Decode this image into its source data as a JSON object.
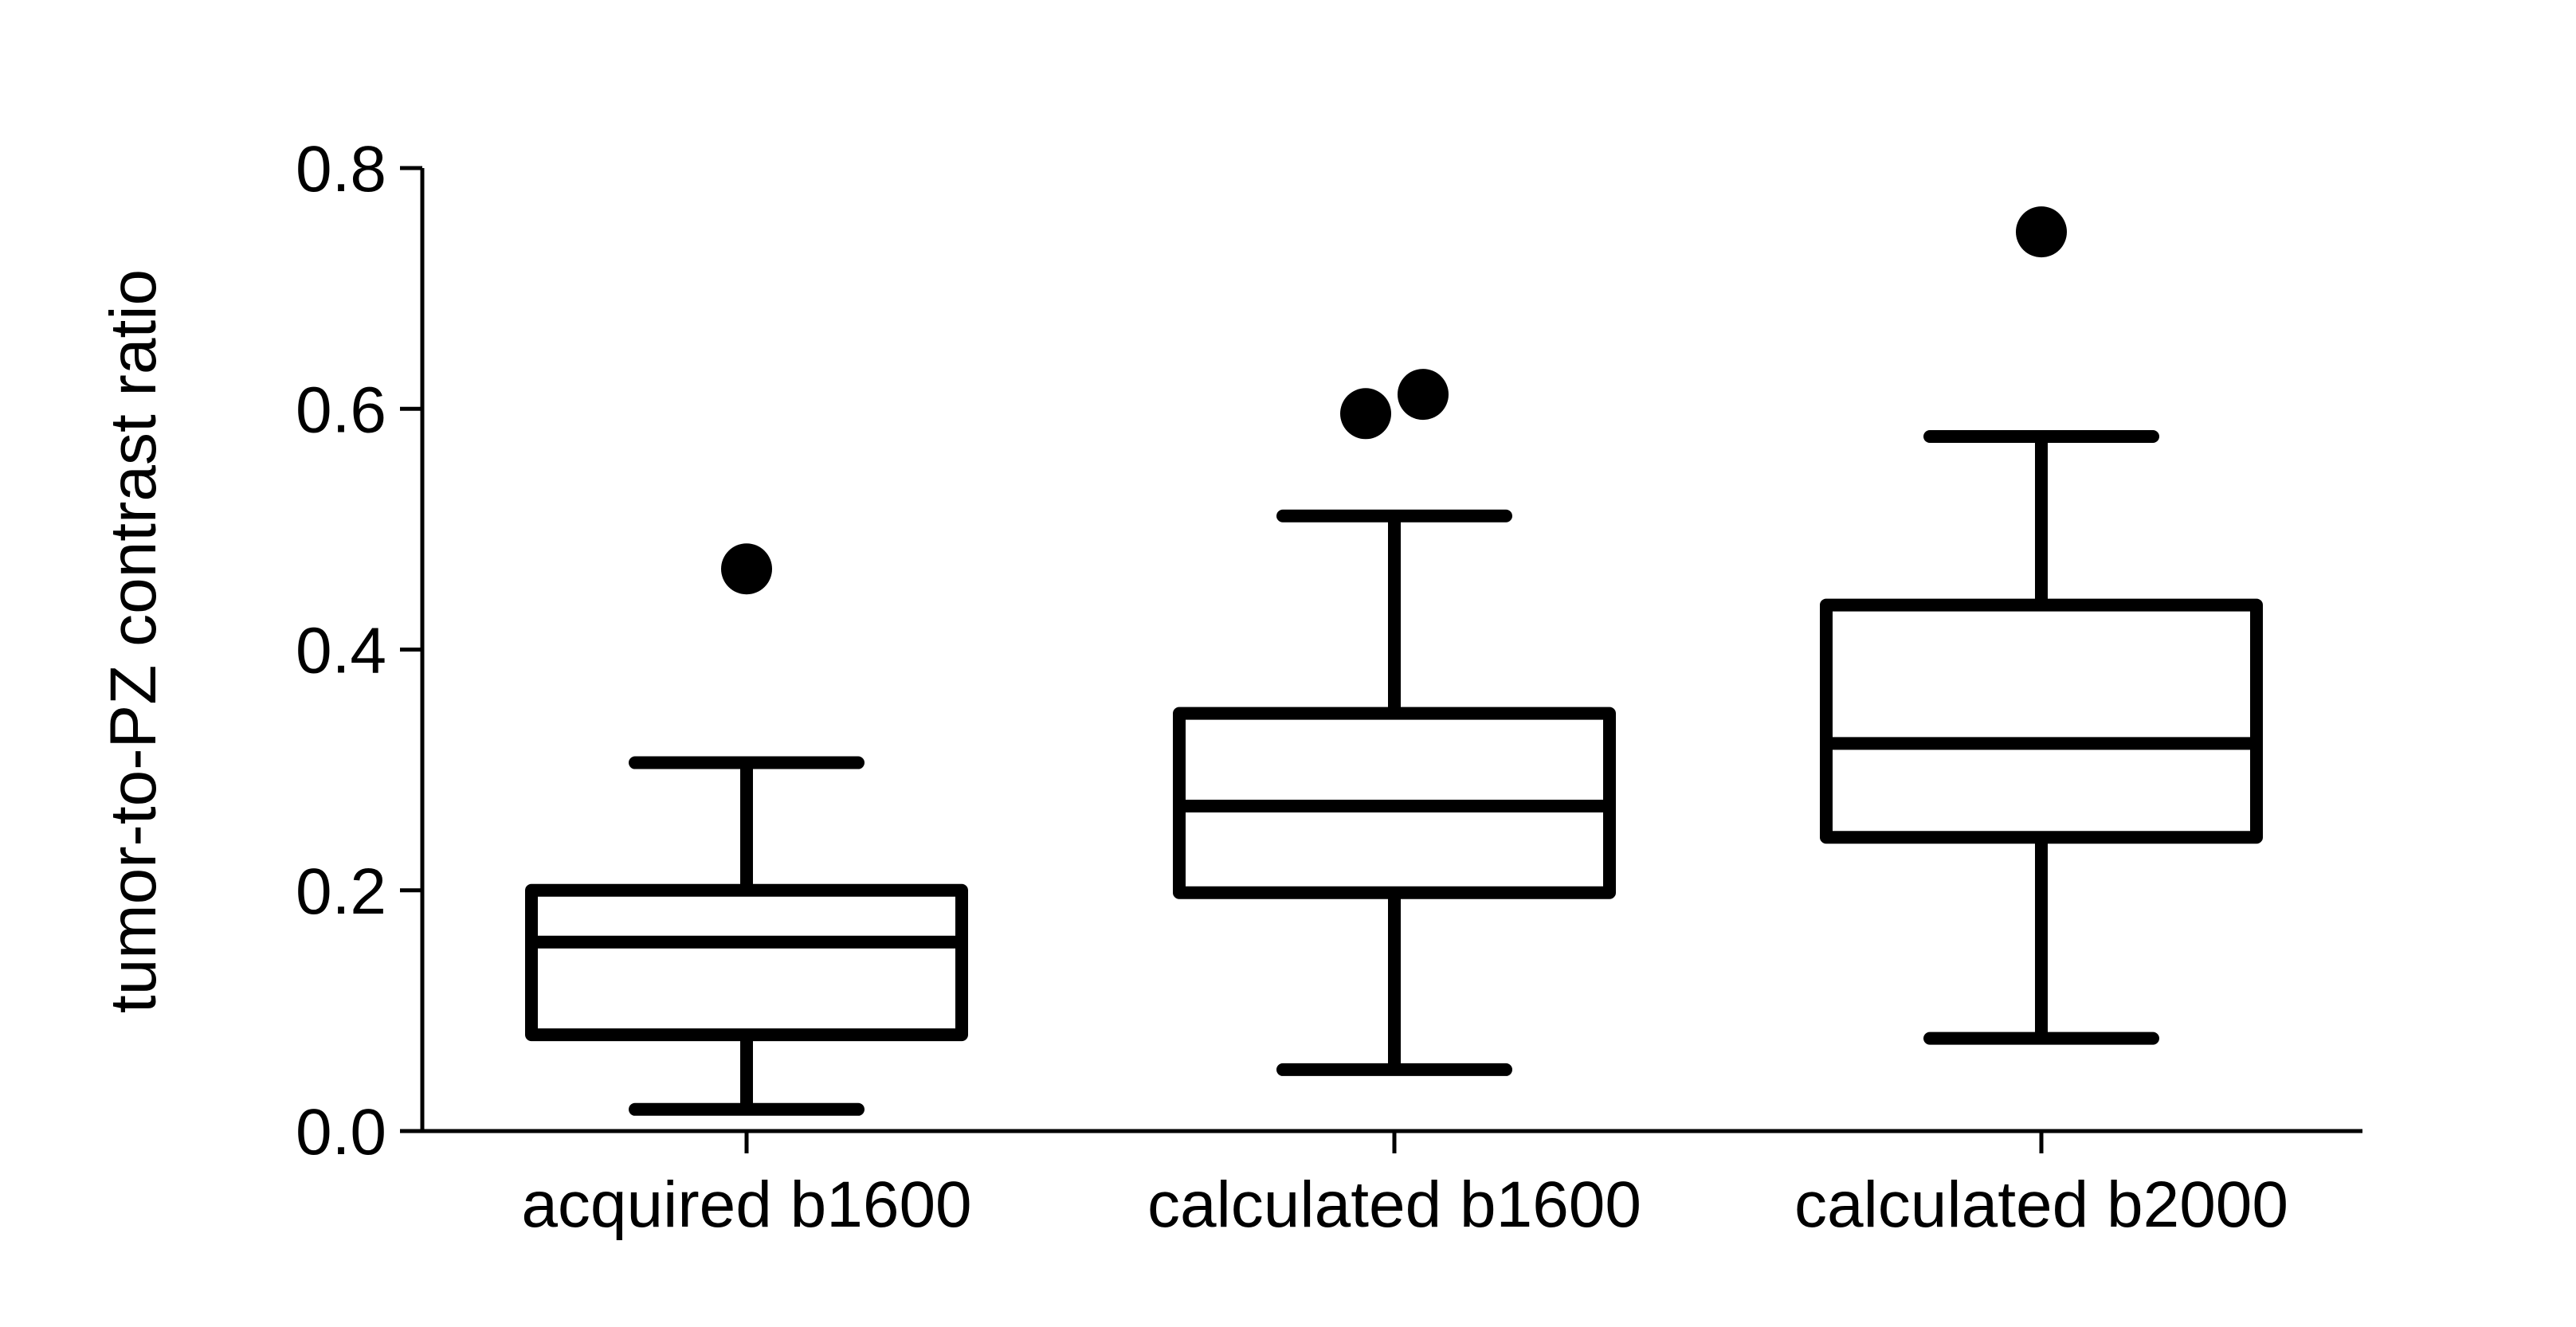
{
  "chart_data": {
    "type": "box",
    "title": "",
    "xlabel": "",
    "ylabel": "tumor-to-PZ contrast ratio",
    "ylim": [
      0,
      0.8
    ],
    "yticks": [
      "0.0",
      "0.2",
      "0.4",
      "0.6",
      "0.8"
    ],
    "ytick_values": [
      0,
      0.2,
      0.4,
      0.6,
      0.8
    ],
    "grid": false,
    "legend": "none",
    "categories": [
      "acquired b1600",
      "calculated b1600",
      "calculated b2000"
    ],
    "boxes": [
      {
        "category": "acquired b1600",
        "whisker_low": 0.018,
        "q1": 0.08,
        "median": 0.157,
        "q3": 0.2,
        "whisker_high": 0.306,
        "outliers": [
          0.467
        ]
      },
      {
        "category": "calculated b1600",
        "whisker_low": 0.051,
        "q1": 0.198,
        "median": 0.27,
        "q3": 0.347,
        "whisker_high": 0.511,
        "outliers": [
          0.596,
          0.612
        ]
      },
      {
        "category": "calculated b2000",
        "whisker_low": 0.077,
        "q1": 0.244,
        "median": 0.322,
        "q3": 0.437,
        "whisker_high": 0.577,
        "outliers": [
          0.747
        ]
      }
    ],
    "colors": {
      "line": "#000000",
      "background": "#ffffff"
    }
  }
}
